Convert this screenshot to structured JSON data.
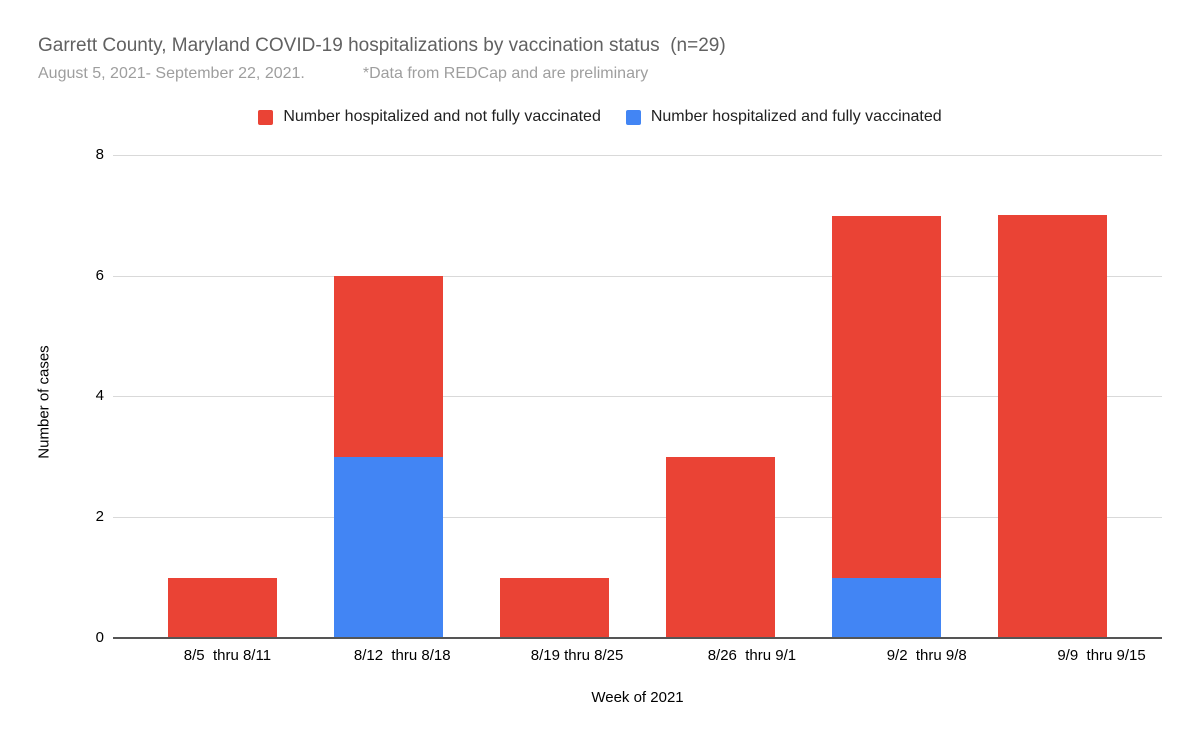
{
  "chart_data": {
    "type": "bar",
    "stacked": true,
    "title": "Garrett County, Maryland COVID-19 hospitalizations by vaccination status  (n=29)",
    "subtitle": {
      "period": "August 5, 2021- September 22, 2021.",
      "note": "*Data from REDCap and are preliminary"
    },
    "categories": [
      "8/5  thru 8/11",
      "8/12  thru 8/18",
      "8/19 thru 8/25",
      "8/26  thru 9/1",
      "9/2  thru 9/8",
      "9/9  thru 9/15"
    ],
    "series": [
      {
        "name": "Number hospitalized and not fully vaccinated",
        "color": "#ea4335",
        "values": [
          1,
          3,
          1,
          3,
          6,
          7
        ]
      },
      {
        "name": "Number hospitalized and fully vaccinated",
        "color": "#4285f4",
        "values": [
          0,
          3,
          0,
          0,
          1,
          0
        ]
      }
    ],
    "xlabel": "Week of 2021",
    "ylabel": "Number of cases",
    "ylim": [
      0,
      8
    ],
    "yticks": [
      0,
      2,
      4,
      6,
      8
    ],
    "grid": "horizontal",
    "legend_position": "top"
  }
}
